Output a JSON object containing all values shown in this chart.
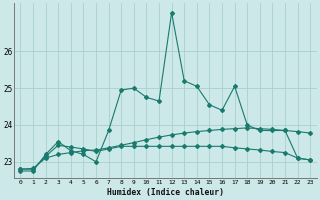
{
  "xlabel": "Humidex (Indice chaleur)",
  "bg_color": "#cce8e8",
  "line_color": "#1a7a6e",
  "grid_color": "#aacfcf",
  "xlim": [
    -0.5,
    23.5
  ],
  "ylim": [
    22.55,
    27.3
  ],
  "yticks": [
    23,
    24,
    25,
    26
  ],
  "xticks": [
    0,
    1,
    2,
    3,
    4,
    5,
    6,
    7,
    8,
    9,
    10,
    11,
    12,
    13,
    14,
    15,
    16,
    17,
    18,
    19,
    20,
    21,
    22,
    23
  ],
  "line1_x": [
    0,
    1,
    2,
    3,
    4,
    5,
    6,
    7,
    8,
    9,
    10,
    11,
    12,
    13,
    14,
    15,
    16,
    17,
    18,
    19,
    20,
    21,
    22,
    23
  ],
  "line1_y": [
    22.75,
    22.75,
    23.2,
    23.55,
    23.3,
    23.2,
    23.0,
    23.85,
    24.95,
    25.0,
    24.75,
    24.65,
    27.05,
    25.2,
    25.05,
    24.55,
    24.4,
    25.05,
    24.0,
    23.85,
    23.85,
    23.85,
    23.1,
    23.05
  ],
  "line2_x": [
    0,
    1,
    2,
    3,
    4,
    5,
    6,
    7,
    8,
    9,
    10,
    11,
    12,
    13,
    14,
    15,
    16,
    17,
    18,
    19,
    20,
    21,
    22,
    23
  ],
  "line2_y": [
    22.8,
    22.82,
    23.1,
    23.2,
    23.25,
    23.3,
    23.32,
    23.38,
    23.45,
    23.52,
    23.6,
    23.67,
    23.73,
    23.78,
    23.82,
    23.85,
    23.88,
    23.9,
    23.92,
    23.9,
    23.88,
    23.85,
    23.82,
    23.78
  ],
  "line3_x": [
    0,
    1,
    2,
    3,
    4,
    5,
    6,
    7,
    8,
    9,
    10,
    11,
    12,
    13,
    14,
    15,
    16,
    17,
    18,
    19,
    20,
    21,
    22,
    23
  ],
  "line3_y": [
    22.8,
    22.8,
    23.15,
    23.45,
    23.4,
    23.35,
    23.28,
    23.35,
    23.42,
    23.42,
    23.42,
    23.42,
    23.42,
    23.42,
    23.42,
    23.42,
    23.42,
    23.38,
    23.35,
    23.32,
    23.28,
    23.25,
    23.1,
    23.05
  ]
}
